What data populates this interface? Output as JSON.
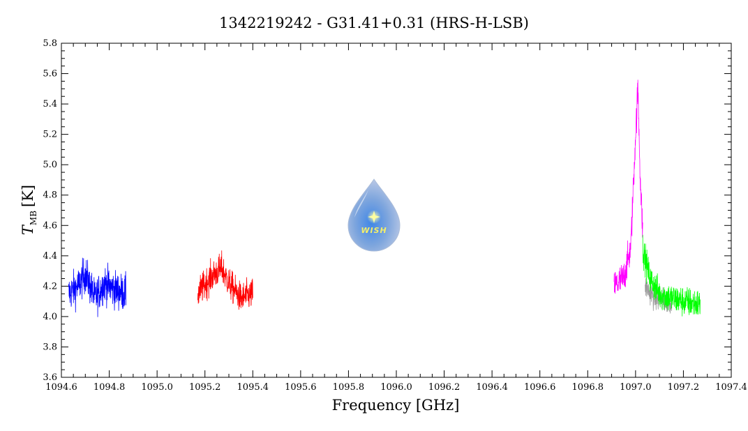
{
  "chart_data": {
    "type": "line",
    "title": "1342219242 - G31.41+0.31 (HRS-H-LSB)",
    "xlabel": "Frequency [GHz]",
    "ylabel": {
      "symbol": "T",
      "subscript": "MB",
      "unit": "[K]"
    },
    "xlim": [
      1094.6,
      1097.4
    ],
    "ylim": [
      3.6,
      5.8
    ],
    "xticks": [
      "1094.6",
      "1094.8",
      "1095.0",
      "1095.2",
      "1095.4",
      "1095.6",
      "1095.8",
      "1096.0",
      "1096.2",
      "1096.4",
      "1096.6",
      "1096.8",
      "1097.0",
      "1097.2",
      "1097.4"
    ],
    "yticks": [
      "3.6",
      "3.8",
      "4.0",
      "4.2",
      "4.4",
      "4.6",
      "4.8",
      "5.0",
      "5.2",
      "5.4",
      "5.6",
      "5.8"
    ],
    "grid": false,
    "legend": "none",
    "series": [
      {
        "color": "#0000ff",
        "x_range": [
          1094.63,
          1094.87
        ],
        "baseline": 4.17,
        "noise": 0.12,
        "x": [
          1094.63,
          1094.67,
          1094.7,
          1094.74,
          1094.78,
          1094.82,
          1094.87
        ],
        "y": [
          4.15,
          4.2,
          4.28,
          4.12,
          4.22,
          4.18,
          4.15
        ]
      },
      {
        "color": "#ff0000",
        "x_range": [
          1095.17,
          1095.4
        ],
        "baseline": 4.18,
        "noise": 0.1,
        "x": [
          1095.17,
          1095.22,
          1095.27,
          1095.3,
          1095.35,
          1095.4
        ],
        "y": [
          4.15,
          4.25,
          4.32,
          4.22,
          4.12,
          4.15
        ]
      },
      {
        "color": "#ff00ff",
        "x_range": [
          1096.91,
          1097.03
        ],
        "baseline": 4.2,
        "noise": 0.11,
        "x": [
          1096.91,
          1096.95,
          1096.98,
          1097.0,
          1097.01,
          1097.02,
          1097.03
        ],
        "y": [
          4.2,
          4.25,
          4.45,
          5.2,
          5.5,
          4.9,
          4.55
        ]
      },
      {
        "color": "#00ff00",
        "x_range": [
          1097.03,
          1097.27
        ],
        "baseline": 4.12,
        "noise": 0.1,
        "x": [
          1097.03,
          1097.06,
          1097.1,
          1097.15,
          1097.2,
          1097.27
        ],
        "y": [
          4.45,
          4.25,
          4.15,
          4.12,
          4.1,
          4.08
        ]
      },
      {
        "color": "#9a9a9a",
        "x_range": [
          1097.04,
          1097.15
        ],
        "baseline": 4.12,
        "noise": 0.08,
        "x": [
          1097.04,
          1097.08,
          1097.12,
          1097.15
        ],
        "y": [
          4.2,
          4.12,
          4.1,
          4.1
        ]
      }
    ]
  },
  "logo": {
    "text": "WISH"
  }
}
